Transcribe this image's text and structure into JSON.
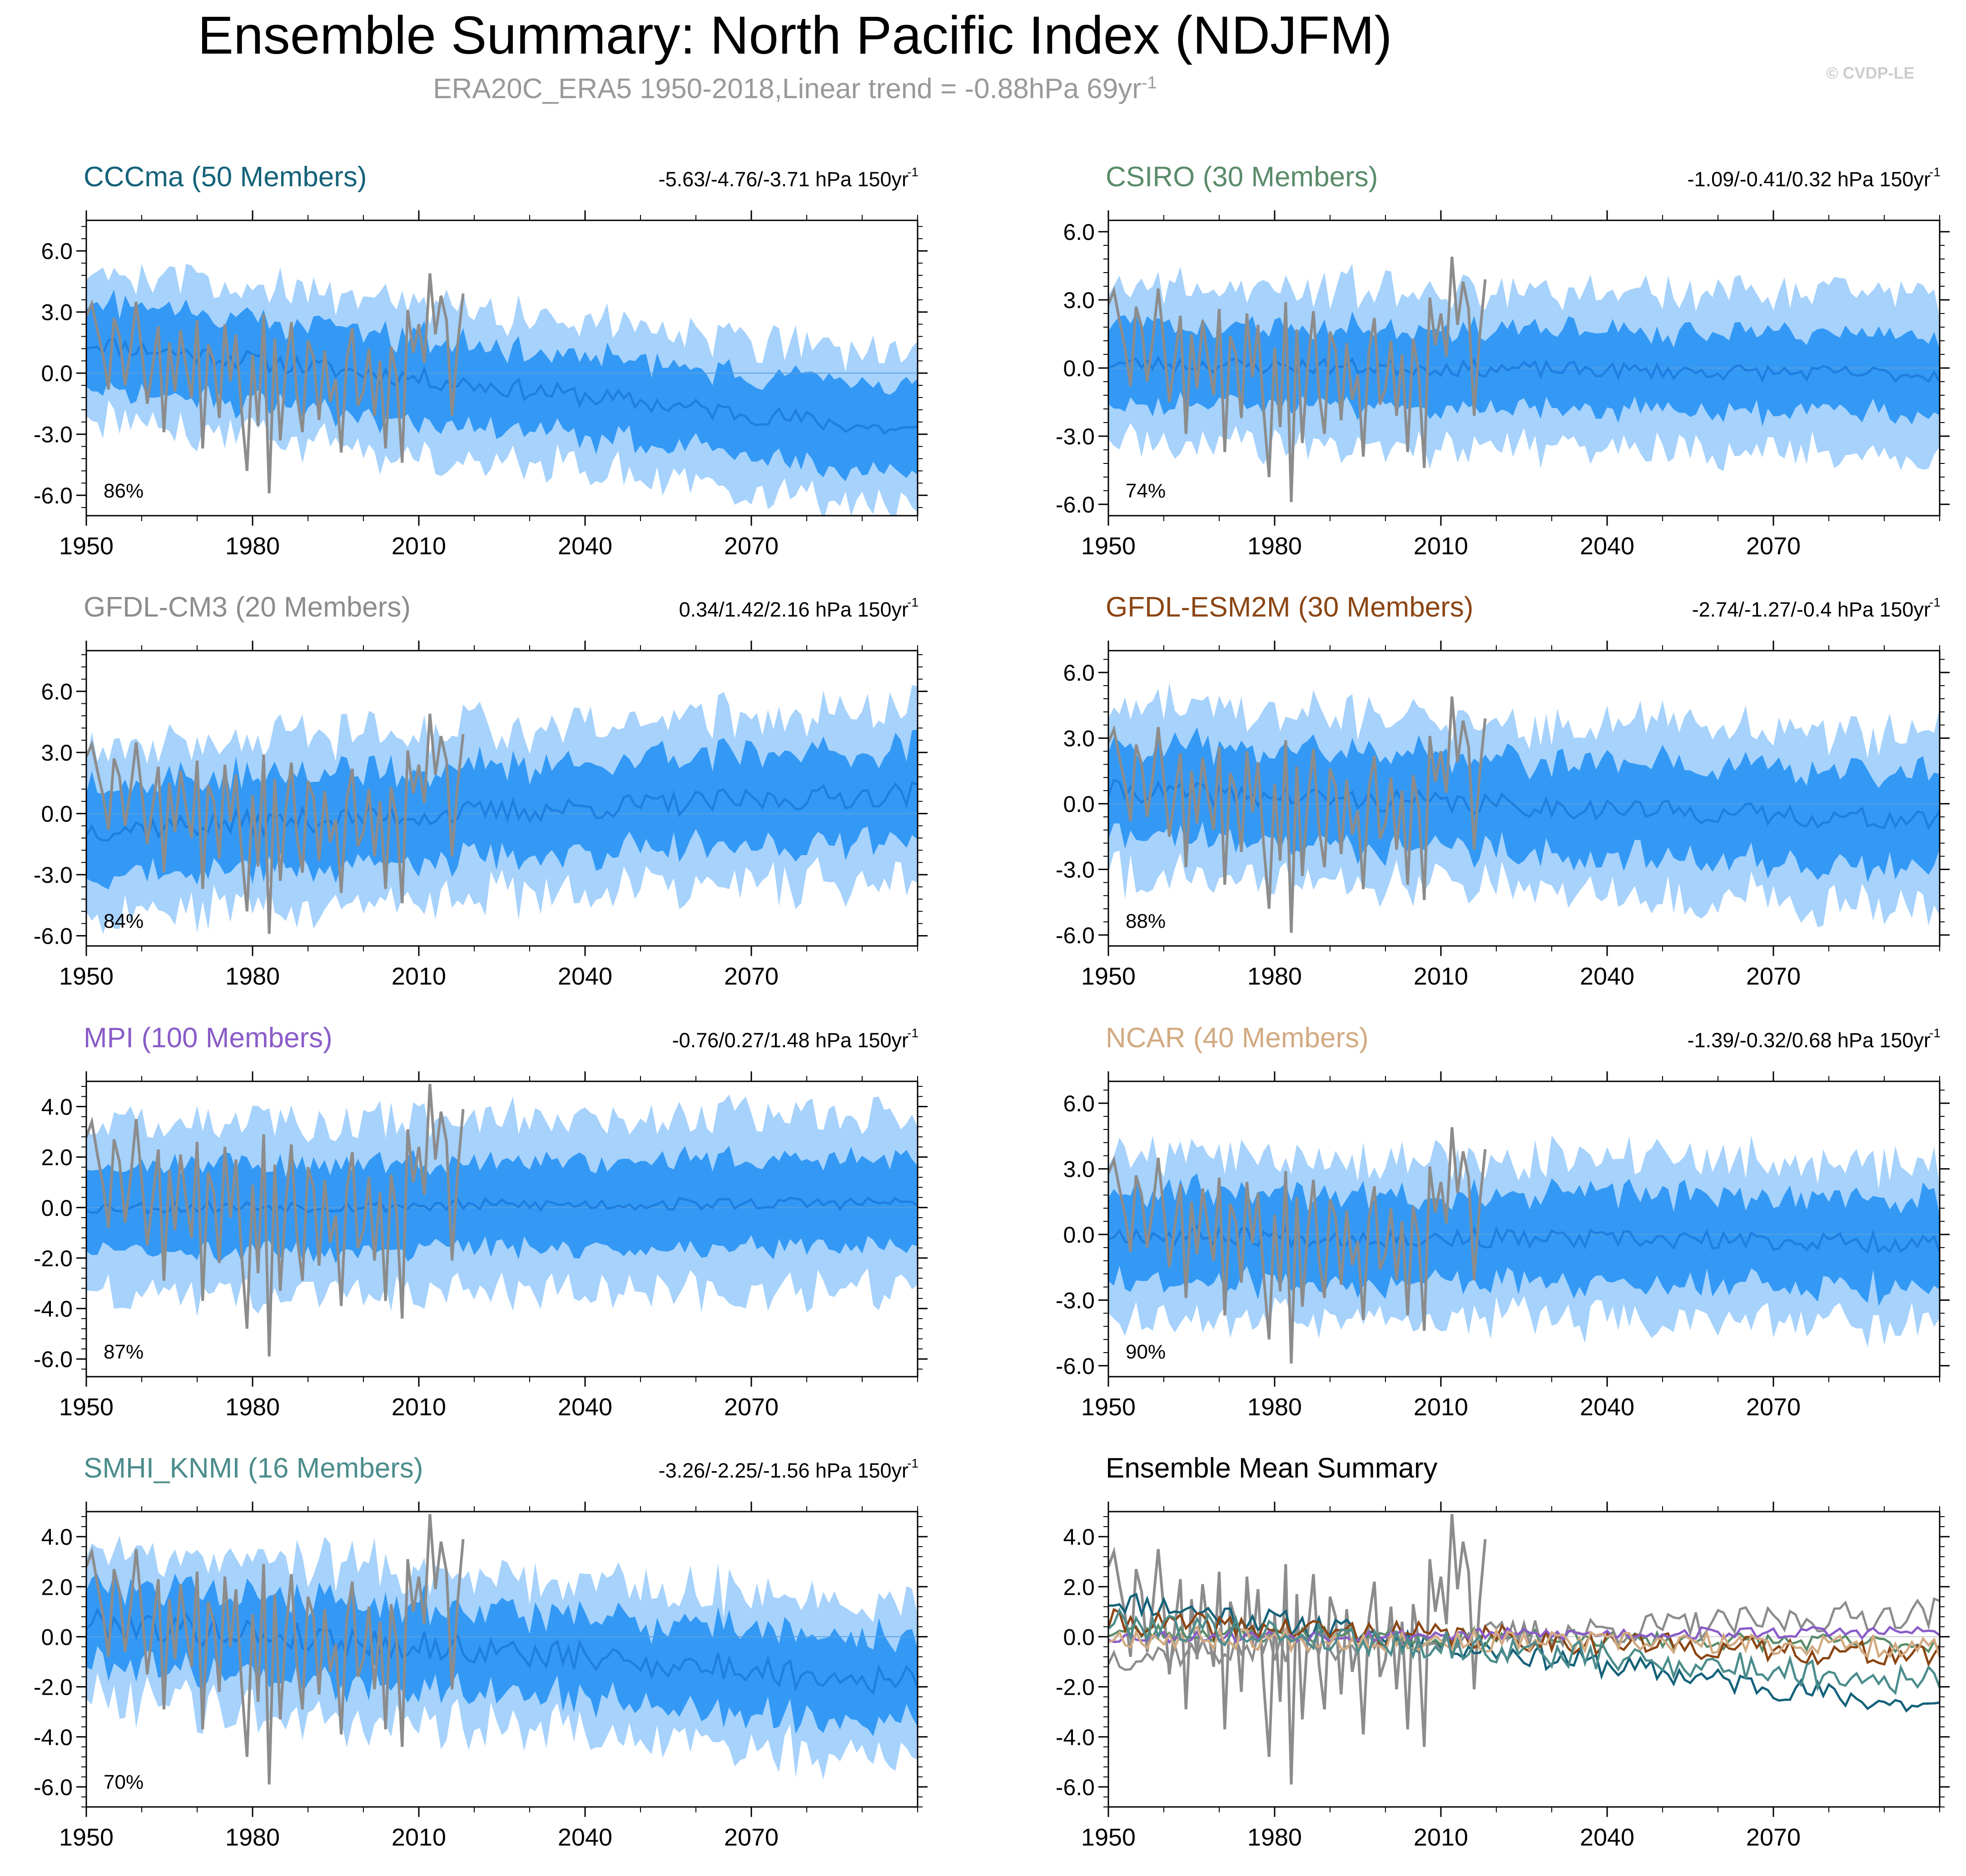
{
  "title": "Ensemble Summary: North Pacific Index (NDJFM)",
  "subtitle": {
    "main": "ERA20C_ERA5 1950-2018,Linear trend = -0.88hPa 69yr",
    "sup": "-1"
  },
  "copyright": "© CVDP-LE",
  "colors": {
    "outer_band": "#a6d2fc",
    "inner_band": "#3399f5",
    "ensemble_mean": "#1f7fe0",
    "observations": "#8c8c8c",
    "axis": "#000000"
  },
  "chart_data": [
    {
      "type": "area",
      "name": "CCCma",
      "label": "CCCma (50 Members)",
      "label_color": "#15627a",
      "trend_text": "-5.63/-4.76/-3.71 hPa 150yr",
      "trend_sup": "-1",
      "percent": "86%",
      "x_range": [
        1950,
        2100
      ],
      "xticks": [
        1950,
        1980,
        2010,
        2040,
        2070
      ],
      "ylim": [
        -7.0,
        7.5
      ],
      "yticks": [
        6.0,
        3.0,
        0.0,
        -3.0,
        -6.0
      ],
      "ytick_labels": [
        "6.0",
        "3.0",
        "0.0",
        "-3.0",
        "-6.0"
      ],
      "mean_start": 1.5,
      "mean_end": -2.9,
      "mean_noise": 0.5,
      "inner_half": 2.0,
      "outer_half": 3.6,
      "seed": 11
    },
    {
      "type": "area",
      "name": "CSIRO",
      "label": "CSIRO (30 Members)",
      "label_color": "#5a8c6a",
      "trend_text": "-1.09/-0.41/0.32 hPa 150yr",
      "trend_sup": "-1",
      "percent": "74%",
      "x_range": [
        1950,
        2100
      ],
      "xticks": [
        1950,
        1980,
        2010,
        2040,
        2070
      ],
      "ylim": [
        -6.5,
        6.5
      ],
      "yticks": [
        6.0,
        3.0,
        0.0,
        -3.0,
        -6.0
      ],
      "ytick_labels": [
        "6.0",
        "3.0",
        "0.0",
        "-3.0",
        "-6.0"
      ],
      "mean_start": 0.2,
      "mean_end": -0.3,
      "mean_noise": 0.35,
      "inner_half": 1.7,
      "outer_half": 3.4,
      "seed": 23
    },
    {
      "type": "area",
      "name": "GFDL-CM3",
      "label": "GFDL-CM3 (20 Members)",
      "label_color": "#8c8c8c",
      "trend_text": "0.34/1.42/2.16 hPa 150yr",
      "trend_sup": "-1",
      "percent": "84%",
      "x_range": [
        1950,
        2100
      ],
      "xticks": [
        1950,
        1980,
        2010,
        2040,
        2070
      ],
      "ylim": [
        -6.5,
        8.0
      ],
      "yticks": [
        6.0,
        3.0,
        0.0,
        -3.0,
        -6.0
      ],
      "ytick_labels": [
        "6.0",
        "3.0",
        "0.0",
        "-3.0",
        "-6.0"
      ],
      "mean_start": -0.8,
      "mean_end": 1.0,
      "mean_noise": 0.6,
      "inner_half": 2.2,
      "outer_half": 4.0,
      "seed": 37
    },
    {
      "type": "area",
      "name": "GFDL-ESM2M",
      "label": "GFDL-ESM2M (30 Members)",
      "label_color": "#8b4513",
      "trend_text": "-2.74/-1.27/-0.4 hPa 150yr",
      "trend_sup": "-1",
      "percent": "88%",
      "x_range": [
        1950,
        2100
      ],
      "xticks": [
        1950,
        1980,
        2010,
        2040,
        2070
      ],
      "ylim": [
        -6.5,
        7.0
      ],
      "yticks": [
        6.0,
        3.0,
        0.0,
        -3.0,
        -6.0
      ],
      "ytick_labels": [
        "6.0",
        "3.0",
        "0.0",
        "-3.0",
        "-6.0"
      ],
      "mean_start": 0.6,
      "mean_end": -0.8,
      "mean_noise": 0.5,
      "inner_half": 2.1,
      "outer_half": 3.8,
      "seed": 41
    },
    {
      "type": "area",
      "name": "MPI",
      "label": "MPI (100 Members)",
      "label_color": "#8a5cc8",
      "trend_text": "-0.76/0.27/1.48 hPa 150yr",
      "trend_sup": "-1",
      "percent": "87%",
      "x_range": [
        1950,
        2100
      ],
      "xticks": [
        1950,
        1980,
        2010,
        2040,
        2070
      ],
      "ylim": [
        -6.7,
        5.0
      ],
      "yticks": [
        4.0,
        2.0,
        0.0,
        -2.0,
        -4.0,
        -6.0
      ],
      "ytick_labels": [
        "4.0",
        "2.0",
        "0.0",
        "-2.0",
        "-4.0",
        "-6.0"
      ],
      "mean_start": 0.0,
      "mean_end": 0.2,
      "mean_noise": 0.25,
      "inner_half": 1.7,
      "outer_half": 3.4,
      "seed": 53
    },
    {
      "type": "area",
      "name": "NCAR",
      "label": "NCAR (40 Members)",
      "label_color": "#d2aa82",
      "trend_text": "-1.39/-0.32/0.68 hPa 150yr",
      "trend_sup": "-1",
      "percent": "90%",
      "x_range": [
        1950,
        2100
      ],
      "xticks": [
        1950,
        1980,
        2010,
        2040,
        2070
      ],
      "ylim": [
        -6.5,
        7.0
      ],
      "yticks": [
        6.0,
        3.0,
        0.0,
        -3.0,
        -6.0
      ],
      "ytick_labels": [
        "6.0",
        "3.0",
        "0.0",
        "-3.0",
        "-6.0"
      ],
      "mean_start": 0.0,
      "mean_end": -0.4,
      "mean_noise": 0.45,
      "inner_half": 2.0,
      "outer_half": 3.6,
      "seed": 67
    },
    {
      "type": "area",
      "name": "SMHI_KNMI",
      "label": "SMHI_KNMI (16 Members)",
      "label_color": "#4c8c8c",
      "trend_text": "-3.26/-2.25/-1.56 hPa 150yr",
      "trend_sup": "-1",
      "percent": "70%",
      "x_range": [
        1950,
        2100
      ],
      "xticks": [
        1950,
        1980,
        2010,
        2040,
        2070
      ],
      "ylim": [
        -6.8,
        5.0
      ],
      "yticks": [
        4.0,
        2.0,
        0.0,
        -2.0,
        -4.0,
        -6.0
      ],
      "ytick_labels": [
        "4.0",
        "2.0",
        "0.0",
        "-2.0",
        "-4.0",
        "-6.0"
      ],
      "mean_start": 0.6,
      "mean_end": -1.8,
      "mean_noise": 0.6,
      "inner_half": 1.6,
      "outer_half": 3.0,
      "seed": 79
    },
    {
      "type": "line",
      "name": "Ensemble Mean Summary",
      "label": "Ensemble Mean Summary",
      "label_color": "#000000",
      "x_range": [
        1950,
        2100
      ],
      "xticks": [
        1950,
        1980,
        2010,
        2040,
        2070
      ],
      "ylim": [
        -6.8,
        5.0
      ],
      "yticks": [
        4.0,
        2.0,
        0.0,
        -2.0,
        -4.0,
        -6.0
      ],
      "ytick_labels": [
        "4.0",
        "2.0",
        "0.0",
        "-2.0",
        "-4.0",
        "-6.0"
      ],
      "series": [
        {
          "name": "CCCma",
          "color": "#15627a",
          "start": 1.5,
          "end": -2.9,
          "noise": 0.5,
          "seed": 11
        },
        {
          "name": "CSIRO",
          "color": "#5a8c6a",
          "start": 0.2,
          "end": -0.3,
          "noise": 0.35,
          "seed": 23
        },
        {
          "name": "GFDL-CM3",
          "color": "#8c8c8c",
          "start": -0.8,
          "end": 1.0,
          "noise": 0.6,
          "seed": 37
        },
        {
          "name": "GFDL-ESM2M",
          "color": "#8b4513",
          "start": 0.6,
          "end": -0.8,
          "noise": 0.5,
          "seed": 41
        },
        {
          "name": "MPI",
          "color": "#8a5cc8",
          "start": 0.0,
          "end": 0.2,
          "noise": 0.25,
          "seed": 53
        },
        {
          "name": "NCAR",
          "color": "#d2aa82",
          "start": 0.0,
          "end": -0.4,
          "noise": 0.45,
          "seed": 67
        },
        {
          "name": "SMHI_KNMI",
          "color": "#4c8c8c",
          "start": 0.6,
          "end": -1.8,
          "noise": 0.6,
          "seed": 79
        }
      ]
    }
  ],
  "observations": {
    "name": "ERA20C_ERA5",
    "years": [
      1950,
      2018
    ],
    "values": [
      2.8,
      3.4,
      2.1,
      0.9,
      -0.8,
      2.7,
      1.8,
      -0.6,
      1.2,
      3.5,
      1.1,
      -1.5,
      0.4,
      2.3,
      -2.9,
      1.5,
      -0.9,
      2.1,
      0.3,
      -1.2,
      2.6,
      -3.7,
      1.4,
      0.6,
      -2.2,
      2.4,
      -0.4,
      1.9,
      -1.8,
      -4.8,
      0.9,
      -2.6,
      2.9,
      -5.9,
      1.7,
      -3.3,
      0.2,
      2.5,
      -1.1,
      -2.9,
      1.6,
      0.8,
      -2.3,
      1.1,
      -1.4,
      -0.3,
      -3.9,
      0.7,
      2.2,
      -1.6,
      -0.9,
      1.2,
      -2.1,
      0.6,
      -3.7,
      1.3,
      -0.2,
      -4.4,
      3.1,
      1.0,
      2.4,
      0.5,
      4.9,
      1.9,
      3.8,
      2.6,
      -2.1,
      1.4,
      3.9
    ]
  }
}
